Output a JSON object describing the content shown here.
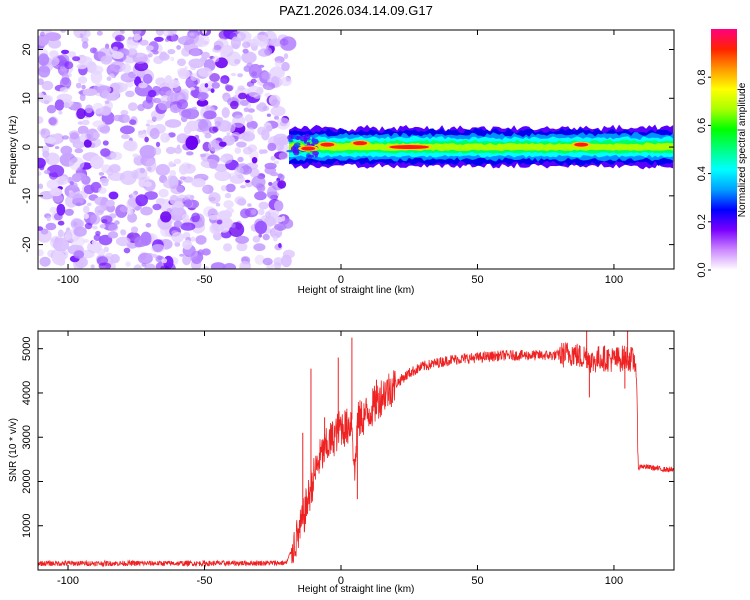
{
  "chart_data": [
    {
      "type": "heatmap",
      "title": "PAZ1.2026.034.14.09.G17",
      "xlabel": "Height of straight line (km)",
      "ylabel": "Frequency (Hz)",
      "xlim": [
        -111,
        122
      ],
      "ylim": [
        -25,
        24
      ],
      "xticks": [
        -100,
        -50,
        0,
        50,
        100
      ],
      "yticks": [
        20,
        10,
        0,
        -10,
        -20
      ],
      "noise_region_x": [
        -111,
        -19
      ],
      "signal_band": {
        "x": [
          -19,
          122
        ],
        "center_hz": 0,
        "halfwidth_hz": 1.5,
        "hot_spots": [
          {
            "x": -12,
            "f": -0.3
          },
          {
            "x": -5,
            "f": 0.5
          },
          {
            "x": 7,
            "f": 0.8
          },
          {
            "x": 25,
            "f": 0.0
          },
          {
            "x": 88,
            "f": 0.5
          }
        ]
      },
      "colorbar": {
        "label": "Normalized spectral amplitude",
        "range": [
          0,
          1
        ],
        "ticks": [
          0.0,
          0.2,
          0.4,
          0.6,
          0.8
        ],
        "tick_labels": [
          "0.0",
          "0.2",
          "0.4",
          "0.6",
          "0.8"
        ],
        "colors": [
          "#ffffff",
          "#cc88ff",
          "#7a00ff",
          "#0000ff",
          "#00a0ff",
          "#00ffff",
          "#00ff80",
          "#00ff00",
          "#aaff00",
          "#ffff00",
          "#ff9900",
          "#ff2200",
          "#ff0080"
        ]
      }
    },
    {
      "type": "line",
      "title": "",
      "xlabel": "Height of straight line (km)",
      "ylabel": "SNR (10 * v/v)",
      "xlim": [
        -111,
        122
      ],
      "ylim": [
        0,
        5400
      ],
      "xticks": [
        -100,
        -50,
        0,
        50,
        100
      ],
      "yticks": [
        1000,
        2000,
        3000,
        4000,
        5000
      ],
      "color": "#ee2222",
      "series": [
        {
          "name": "SNR",
          "x": [
            -111,
            -80,
            -50,
            -20,
            -15,
            -12,
            -10,
            -8,
            -6,
            -4,
            -2,
            0,
            2,
            4,
            5,
            6,
            8,
            10,
            12,
            15,
            20,
            25,
            30,
            40,
            50,
            60,
            70,
            80,
            85,
            88,
            90,
            92,
            95,
            100,
            105,
            108,
            109,
            110,
            115,
            122
          ],
          "y": [
            150,
            150,
            150,
            160,
            900,
            1600,
            2100,
            2500,
            2700,
            2900,
            3050,
            3250,
            3200,
            3400,
            2100,
            3350,
            3450,
            3550,
            3700,
            3950,
            4200,
            4450,
            4600,
            4750,
            4800,
            4850,
            4850,
            4850,
            4900,
            4800,
            4850,
            4700,
            4800,
            4750,
            4800,
            4700,
            2300,
            2350,
            2300,
            2250
          ],
          "spikes": [
            {
              "x": -14,
              "y": 3100
            },
            {
              "x": -11,
              "y": 4550
            },
            {
              "x": -6,
              "y": 3450
            },
            {
              "x": -1,
              "y": 4800
            },
            {
              "x": 4,
              "y": 5250
            },
            {
              "x": 6,
              "y": 1600
            },
            {
              "x": 13,
              "y": 4300
            },
            {
              "x": 90,
              "y": 5400
            },
            {
              "x": 91,
              "y": 3900
            },
            {
              "x": 105,
              "y": 5400
            },
            {
              "x": 104,
              "y": 4100
            }
          ],
          "noise_amplitude": [
            {
              "x_from": -111,
              "x_to": -18,
              "amp": 60
            },
            {
              "x_from": -18,
              "x_to": 20,
              "amp": 450
            },
            {
              "x_from": 20,
              "x_to": 80,
              "amp": 120
            },
            {
              "x_from": 80,
              "x_to": 109,
              "amp": 300
            },
            {
              "x_from": 109,
              "x_to": 122,
              "amp": 60
            }
          ]
        }
      ]
    }
  ]
}
